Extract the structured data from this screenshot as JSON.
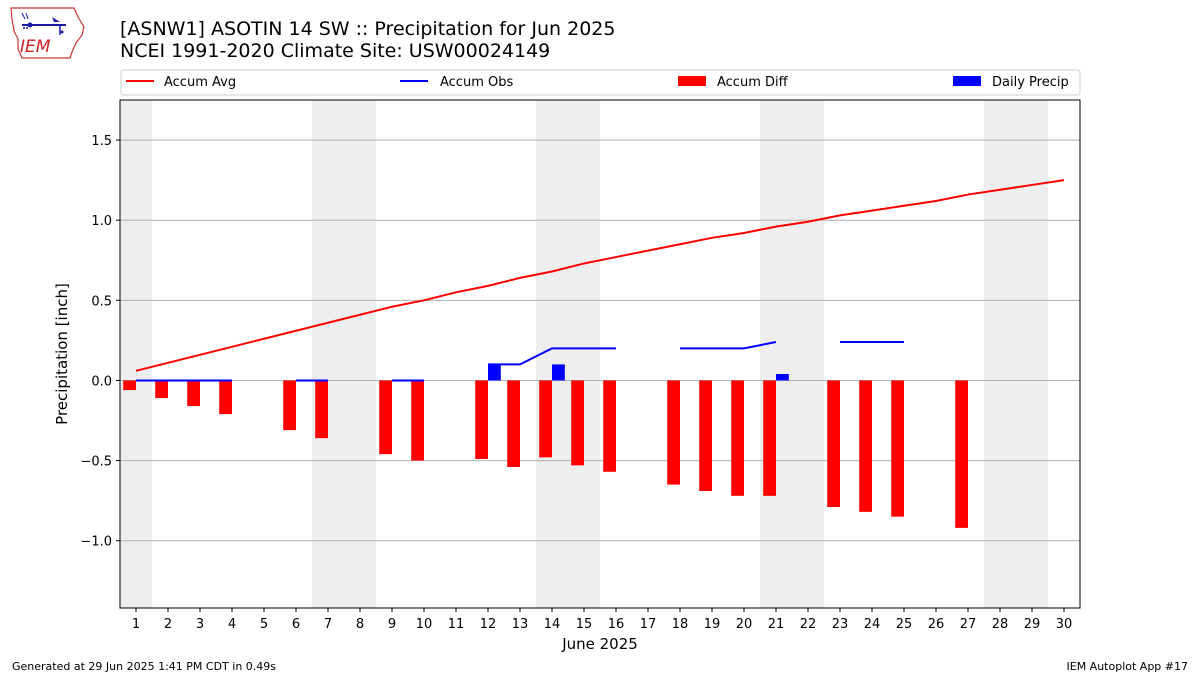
{
  "logo": {
    "text": "IEM",
    "icon": "iowa-state-weather-logo-icon"
  },
  "header": {
    "title_line1": "[ASNW1] ASOTIN 14 SW :: Precipitation for Jun 2025",
    "title_line2": "NCEI 1991-2020 Climate Site: USW00024149"
  },
  "footer": {
    "left": "Generated at 29 Jun 2025 1:41 PM CDT in 0.49s",
    "right": "IEM Autoplot App #17"
  },
  "colors": {
    "avg": "#ff0000",
    "obs": "#0000ff",
    "diff": "#ff0000",
    "daily": "#0000ff",
    "weekend": "#eeeeee",
    "grid": "#b0b0b0"
  },
  "chart_data": {
    "type": "bar",
    "xlabel": "June 2025",
    "ylabel": "Precipitation [inch]",
    "ylim": [
      -1.42,
      1.75
    ],
    "yticks": [
      -1.0,
      -0.5,
      0.0,
      0.5,
      1.0,
      1.5
    ],
    "ytick_labels": [
      "−1.0",
      "−0.5",
      "0.0",
      "0.5",
      "1.0",
      "1.5"
    ],
    "xlim": [
      0.5,
      30.5
    ],
    "days": [
      1,
      2,
      3,
      4,
      5,
      6,
      7,
      8,
      9,
      10,
      11,
      12,
      13,
      14,
      15,
      16,
      17,
      18,
      19,
      20,
      21,
      22,
      23,
      24,
      25,
      26,
      27,
      28,
      29,
      30
    ],
    "weekend_days": [
      1,
      7,
      8,
      14,
      15,
      21,
      22,
      28,
      29
    ],
    "grid": "y",
    "legend_position": "top",
    "legend": [
      {
        "label": "Accum Avg",
        "kind": "line",
        "color": "#ff0000"
      },
      {
        "label": "Accum Obs",
        "kind": "line",
        "color": "#0000ff"
      },
      {
        "label": "Accum Diff",
        "kind": "bar",
        "color": "#ff0000"
      },
      {
        "label": "Daily Precip",
        "kind": "bar",
        "color": "#0000ff"
      }
    ],
    "series": [
      {
        "name": "Accum Avg",
        "type": "line",
        "values": [
          0.06,
          0.11,
          0.16,
          0.21,
          0.26,
          0.31,
          0.36,
          0.41,
          0.46,
          0.5,
          0.55,
          0.59,
          0.64,
          0.68,
          0.73,
          0.77,
          0.81,
          0.85,
          0.89,
          0.92,
          0.96,
          0.99,
          1.03,
          1.06,
          1.09,
          1.12,
          1.16,
          1.19,
          1.22,
          1.25
        ]
      },
      {
        "name": "Accum Obs",
        "type": "line",
        "values": [
          0.0,
          0.0,
          0.0,
          0.0,
          null,
          0.0,
          0.0,
          null,
          0.0,
          0.0,
          null,
          0.1,
          0.1,
          0.2,
          0.2,
          0.2,
          null,
          0.2,
          0.2,
          0.2,
          0.24,
          null,
          0.24,
          0.24,
          0.24,
          null,
          null,
          null,
          null,
          null
        ]
      },
      {
        "name": "Accum Diff",
        "type": "bar",
        "values": [
          -0.06,
          -0.11,
          -0.16,
          -0.21,
          null,
          -0.31,
          -0.36,
          null,
          -0.46,
          -0.5,
          null,
          -0.49,
          -0.54,
          -0.48,
          -0.53,
          -0.57,
          null,
          -0.65,
          -0.69,
          -0.72,
          -0.72,
          null,
          -0.79,
          -0.82,
          -0.85,
          null,
          -0.92,
          null,
          null,
          null
        ]
      },
      {
        "name": "Daily Precip",
        "type": "bar",
        "values": [
          0,
          0,
          0,
          0,
          null,
          0,
          0,
          null,
          0,
          0,
          null,
          0.1,
          0,
          0.1,
          0,
          0,
          null,
          0,
          0,
          0,
          0.04,
          null,
          0,
          0,
          0,
          null,
          null,
          null,
          null,
          null
        ]
      }
    ]
  }
}
